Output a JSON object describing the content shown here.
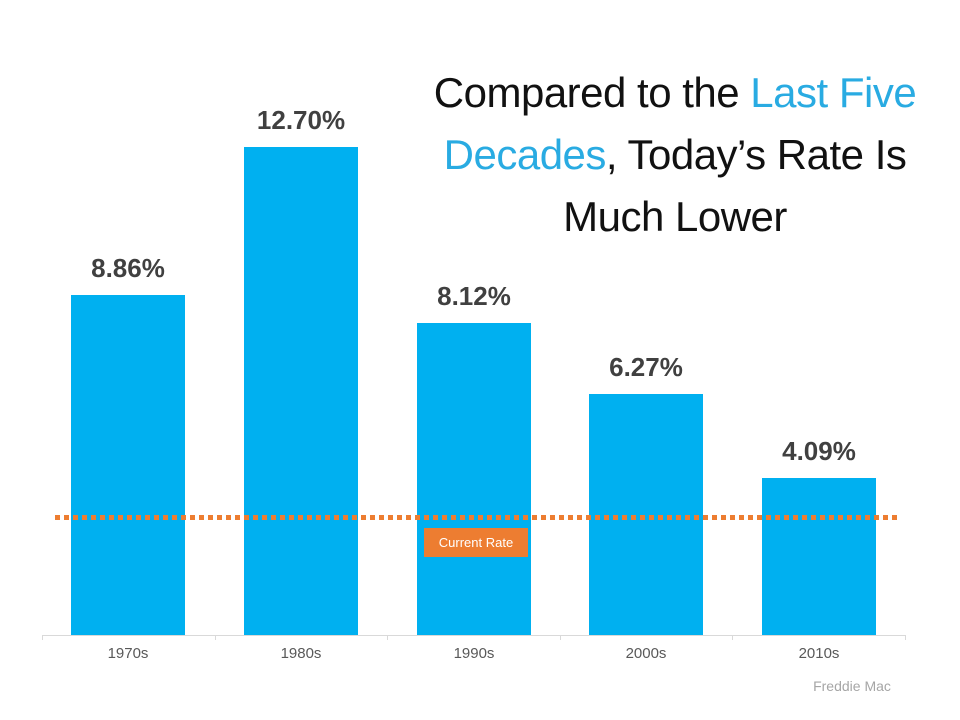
{
  "title": {
    "full_text": "Compared to the Last Five Decades, Today’s Rate Is Much Lower",
    "lines": [
      {
        "pre": "Compared to the ",
        "accent": "Last Five"
      },
      {
        "accent": "Decades",
        "post": ", Today’s Rate Is"
      },
      {
        "post": "Much Lower"
      }
    ],
    "accent_color": "#29ABE2",
    "text_color": "#111111"
  },
  "chart_data": {
    "type": "bar",
    "categories": [
      "1970s",
      "1980s",
      "1990s",
      "2000s",
      "2010s"
    ],
    "values": [
      8.86,
      12.7,
      8.12,
      6.27,
      4.09
    ],
    "value_labels": [
      "8.86%",
      "12.70%",
      "8.12%",
      "6.27%",
      "4.09%"
    ],
    "title": "Compared to the Last Five Decades, Today’s Rate Is Much Lower",
    "xlabel": "",
    "ylabel": "",
    "ylim": [
      0,
      14
    ],
    "grid": false,
    "legend": false,
    "bar_color": "#00B0F0",
    "value_label_color": "#404040",
    "axis_color": "#D9D9D9",
    "tick_label_color": "#595959",
    "current_rate_line": {
      "label": "Current Rate",
      "value_estimate": 3.05,
      "color": "#ED7D31",
      "style": "dotted"
    }
  },
  "source": {
    "label": "Freddie Mac",
    "color": "#A6A6A6"
  }
}
